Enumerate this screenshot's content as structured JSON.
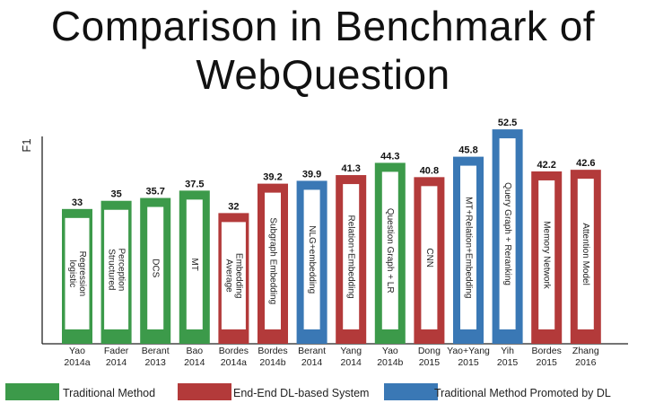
{
  "title_line1": "Comparison in Benchmark of",
  "title_line2": "WebQuestion",
  "chart_data": {
    "type": "bar",
    "ylabel": "F1",
    "ylim": [
      0,
      55
    ],
    "legend_position": "bottom",
    "categories": [
      [
        "Yao",
        "2014a"
      ],
      [
        "Fader",
        "2014"
      ],
      [
        "Berant",
        "2013"
      ],
      [
        "Bao",
        "2014"
      ],
      [
        "Bordes",
        "2014a"
      ],
      [
        "Bordes",
        "2014b"
      ],
      [
        "Berant",
        "2014"
      ],
      [
        "Yang",
        "2014"
      ],
      [
        "Yao",
        "2014b"
      ],
      [
        "Dong",
        "2015"
      ],
      [
        "Yao+Yang",
        "2015"
      ],
      [
        "Yih",
        "2015"
      ],
      [
        "Bordes",
        "2015"
      ],
      [
        "Zhang",
        "2016"
      ]
    ],
    "values": [
      33,
      35,
      35.7,
      37.5,
      32,
      39.2,
      39.9,
      41.3,
      44.3,
      40.8,
      45.8,
      52.5,
      42.2,
      42.6
    ],
    "value_labels": [
      "33",
      "35",
      "35.7",
      "37.5",
      "32",
      "39.2",
      "39.9",
      "41.3",
      "44.3",
      "40.8",
      "45.8",
      "52.5",
      "42.2",
      "42.6"
    ],
    "method_labels": [
      [
        "logistic",
        "Regression"
      ],
      [
        "Structured",
        "Perception"
      ],
      [
        "DCS"
      ],
      [
        "MT"
      ],
      [
        "Average",
        "Embedding"
      ],
      [
        "Subgraph Embedding"
      ],
      [
        "NLG+embedding"
      ],
      [
        "Relation+Embedding"
      ],
      [
        "Question Graph + LR"
      ],
      [
        "CNN"
      ],
      [
        "MT+Relation+Embedding"
      ],
      [
        "Query Graph + Reranking"
      ],
      [
        "Memory Network"
      ],
      [
        "Attention Model"
      ]
    ],
    "groups": [
      "traditional",
      "traditional",
      "traditional",
      "traditional",
      "e2e",
      "e2e",
      "promoted",
      "e2e",
      "traditional",
      "e2e",
      "promoted",
      "promoted",
      "e2e",
      "e2e"
    ],
    "legend": [
      {
        "key": "traditional",
        "name": "Traditional Method",
        "color": "#3c9a4a"
      },
      {
        "key": "e2e",
        "name": "End-End DL-based System",
        "color": "#b33a3a"
      },
      {
        "key": "promoted",
        "name": "Traditional Method Promoted by DL",
        "color": "#3a78b5"
      }
    ]
  }
}
